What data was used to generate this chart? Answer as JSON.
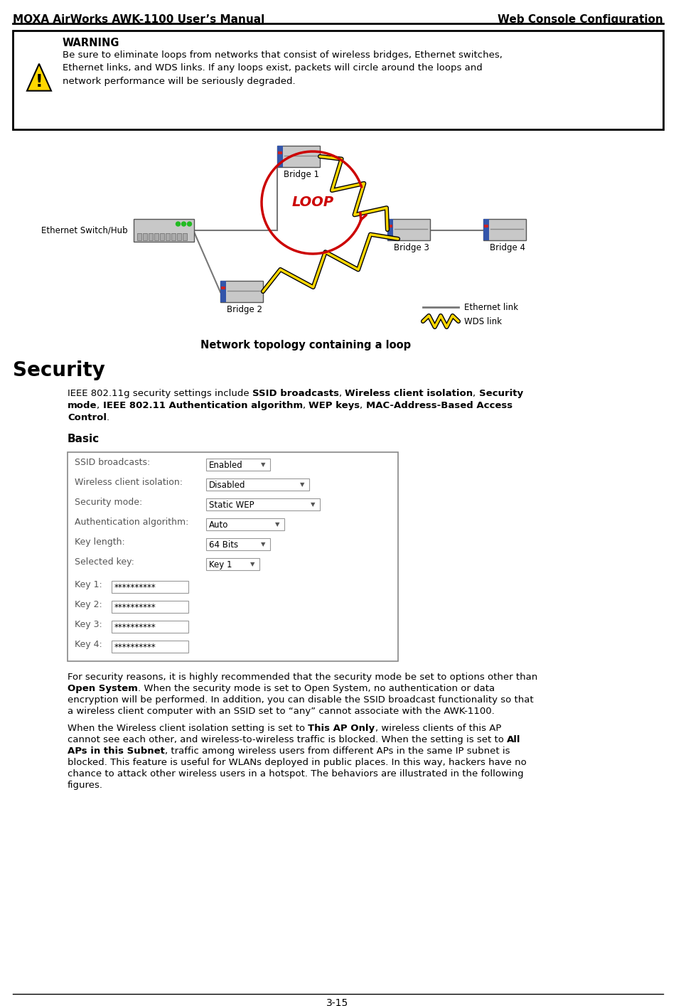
{
  "header_left": "MOXA AirWorks AWK-1100 User’s Manual",
  "header_right": "Web Console Configuration",
  "warning_title": "WARNING",
  "warning_text": "Be sure to eliminate loops from networks that consist of wireless bridges, Ethernet switches,\nEthernet links, and WDS links. If any loops exist, packets will circle around the loops and\nnetwork performance will be seriously degraded.",
  "diagram_caption": "Network topology containing a loop",
  "security_heading": "Security",
  "basic_heading": "Basic",
  "form_fields": [
    {
      "label": "SSID broadcasts:",
      "value": "Enabled",
      "dw": 90
    },
    {
      "label": "Wireless client isolation:",
      "value": "Disabled",
      "dw": 145
    },
    {
      "label": "Security mode:",
      "value": "Static WEP",
      "dw": 160
    },
    {
      "label": "Authentication algorithm:",
      "value": "Auto",
      "dw": 110
    },
    {
      "label": "Key length:",
      "value": "64 Bits",
      "dw": 90
    },
    {
      "label": "Selected key:",
      "value": "Key 1",
      "dw": 75
    }
  ],
  "key_fields": [
    {
      "label": "Key 1:",
      "value": "**********"
    },
    {
      "label": "Key 2:",
      "value": "**********"
    },
    {
      "label": "Key 3:",
      "value": "**********"
    },
    {
      "label": "Key 4:",
      "value": "**********"
    }
  ],
  "footer_text": "3-15",
  "bg_color": "#ffffff",
  "loop_text_color": "#cc0000",
  "warning_icon_color": "#FFD700",
  "wds_color": "#FFD700"
}
